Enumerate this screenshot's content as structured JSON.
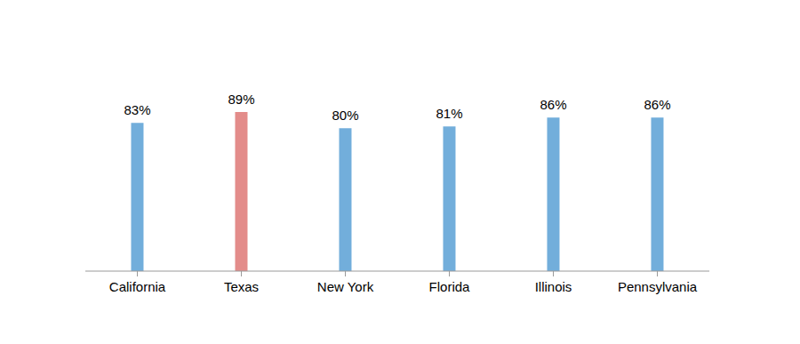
{
  "chart_data": {
    "type": "bar",
    "categories": [
      "California",
      "Texas",
      "New York",
      "Florida",
      "Illinois",
      "Pennsylvania"
    ],
    "values": [
      83,
      89,
      80,
      81,
      86,
      86
    ],
    "value_labels": [
      "83%",
      "89%",
      "80%",
      "81%",
      "86%",
      "86%"
    ],
    "colors": [
      "#72aedb",
      "#e38c8a",
      "#72aedb",
      "#72aedb",
      "#72aedb",
      "#72aedb"
    ],
    "ylim": [
      0,
      100
    ],
    "data_labels": true,
    "tick_labels": "x"
  }
}
